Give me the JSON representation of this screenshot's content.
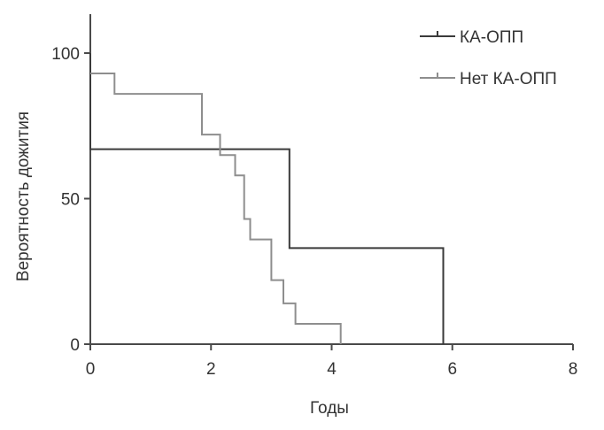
{
  "chart_data": {
    "type": "line",
    "subtype": "kaplan-meier-step",
    "title": "",
    "xlabel": "Годы",
    "ylabel": "Вероятность дожития",
    "xlim": [
      0,
      8
    ],
    "ylim": [
      0,
      100
    ],
    "x_ticks": [
      "0",
      "2",
      "4",
      "6",
      "8"
    ],
    "y_ticks": [
      "0",
      "50",
      "100"
    ],
    "x_tick_values": [
      0,
      2,
      4,
      6,
      8
    ],
    "y_tick_values": [
      0,
      50,
      100
    ],
    "grid": false,
    "legend_position": "top-right",
    "series": [
      {
        "name": "КА-ОПП",
        "color": "#3a3a3a",
        "points": [
          [
            0,
            100
          ],
          [
            0,
            67
          ],
          [
            3.3,
            67
          ],
          [
            3.3,
            33
          ],
          [
            5.85,
            33
          ],
          [
            5.85,
            0
          ]
        ]
      },
      {
        "name": "Нет КА-ОПП",
        "color": "#8e8e8e",
        "points": [
          [
            0,
            93
          ],
          [
            0.4,
            93
          ],
          [
            0.4,
            86
          ],
          [
            1.85,
            86
          ],
          [
            1.85,
            72
          ],
          [
            2.15,
            72
          ],
          [
            2.15,
            65
          ],
          [
            2.4,
            65
          ],
          [
            2.4,
            58
          ],
          [
            2.55,
            58
          ],
          [
            2.55,
            43
          ],
          [
            2.65,
            43
          ],
          [
            2.65,
            36
          ],
          [
            3.0,
            36
          ],
          [
            3.0,
            22
          ],
          [
            3.2,
            22
          ],
          [
            3.2,
            14
          ],
          [
            3.4,
            14
          ],
          [
            3.4,
            7
          ],
          [
            4.15,
            7
          ],
          [
            4.15,
            0
          ]
        ]
      }
    ]
  }
}
